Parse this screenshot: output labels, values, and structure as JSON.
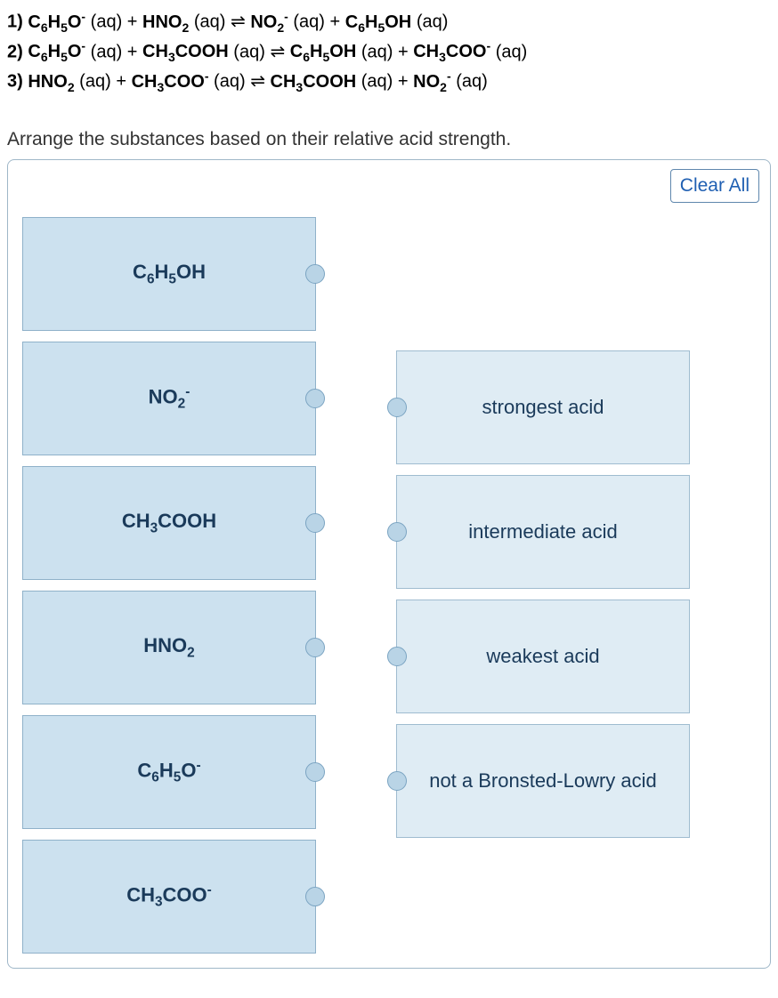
{
  "equations": [
    {
      "num": "1)",
      "lhs1": "C₆H₅O⁻",
      "lhs2": "HNO₂",
      "rhs1": "NO₂⁻",
      "rhs2": "C₆H₅OH"
    },
    {
      "num": "2)",
      "lhs1": "C₆H₅O⁻",
      "lhs2": "CH₃COOH",
      "rhs1": "C₆H₅OH",
      "rhs2": "CH₃COO⁻"
    },
    {
      "num": "3)",
      "lhs1": "HNO₂",
      "lhs2": "CH₃COO⁻",
      "rhs1": "CH₃COOH",
      "rhs2": "NO₂⁻"
    }
  ],
  "aq": "(aq)",
  "plus": "+",
  "arrow": "⇌",
  "instruction": "Arrange the substances based on their relative acid strength.",
  "clear_all": "Clear All",
  "left_tiles": [
    "C₆H₅OH",
    "NO₂⁻",
    "CH₃COOH",
    "HNO₂",
    "C₆H₅O⁻",
    "CH₃COO⁻"
  ],
  "right_tiles": [
    "strongest acid",
    "intermediate acid",
    "weakest acid",
    "not a Bronsted-Lowry acid"
  ],
  "colors": {
    "panel_border": "#9fb7c8",
    "drag_bg": "#cce1ef",
    "drop_bg": "#dfecf4",
    "tile_border": "#8fb1c9",
    "text": "#1a3a5a",
    "button_text": "#1f5fb2"
  }
}
